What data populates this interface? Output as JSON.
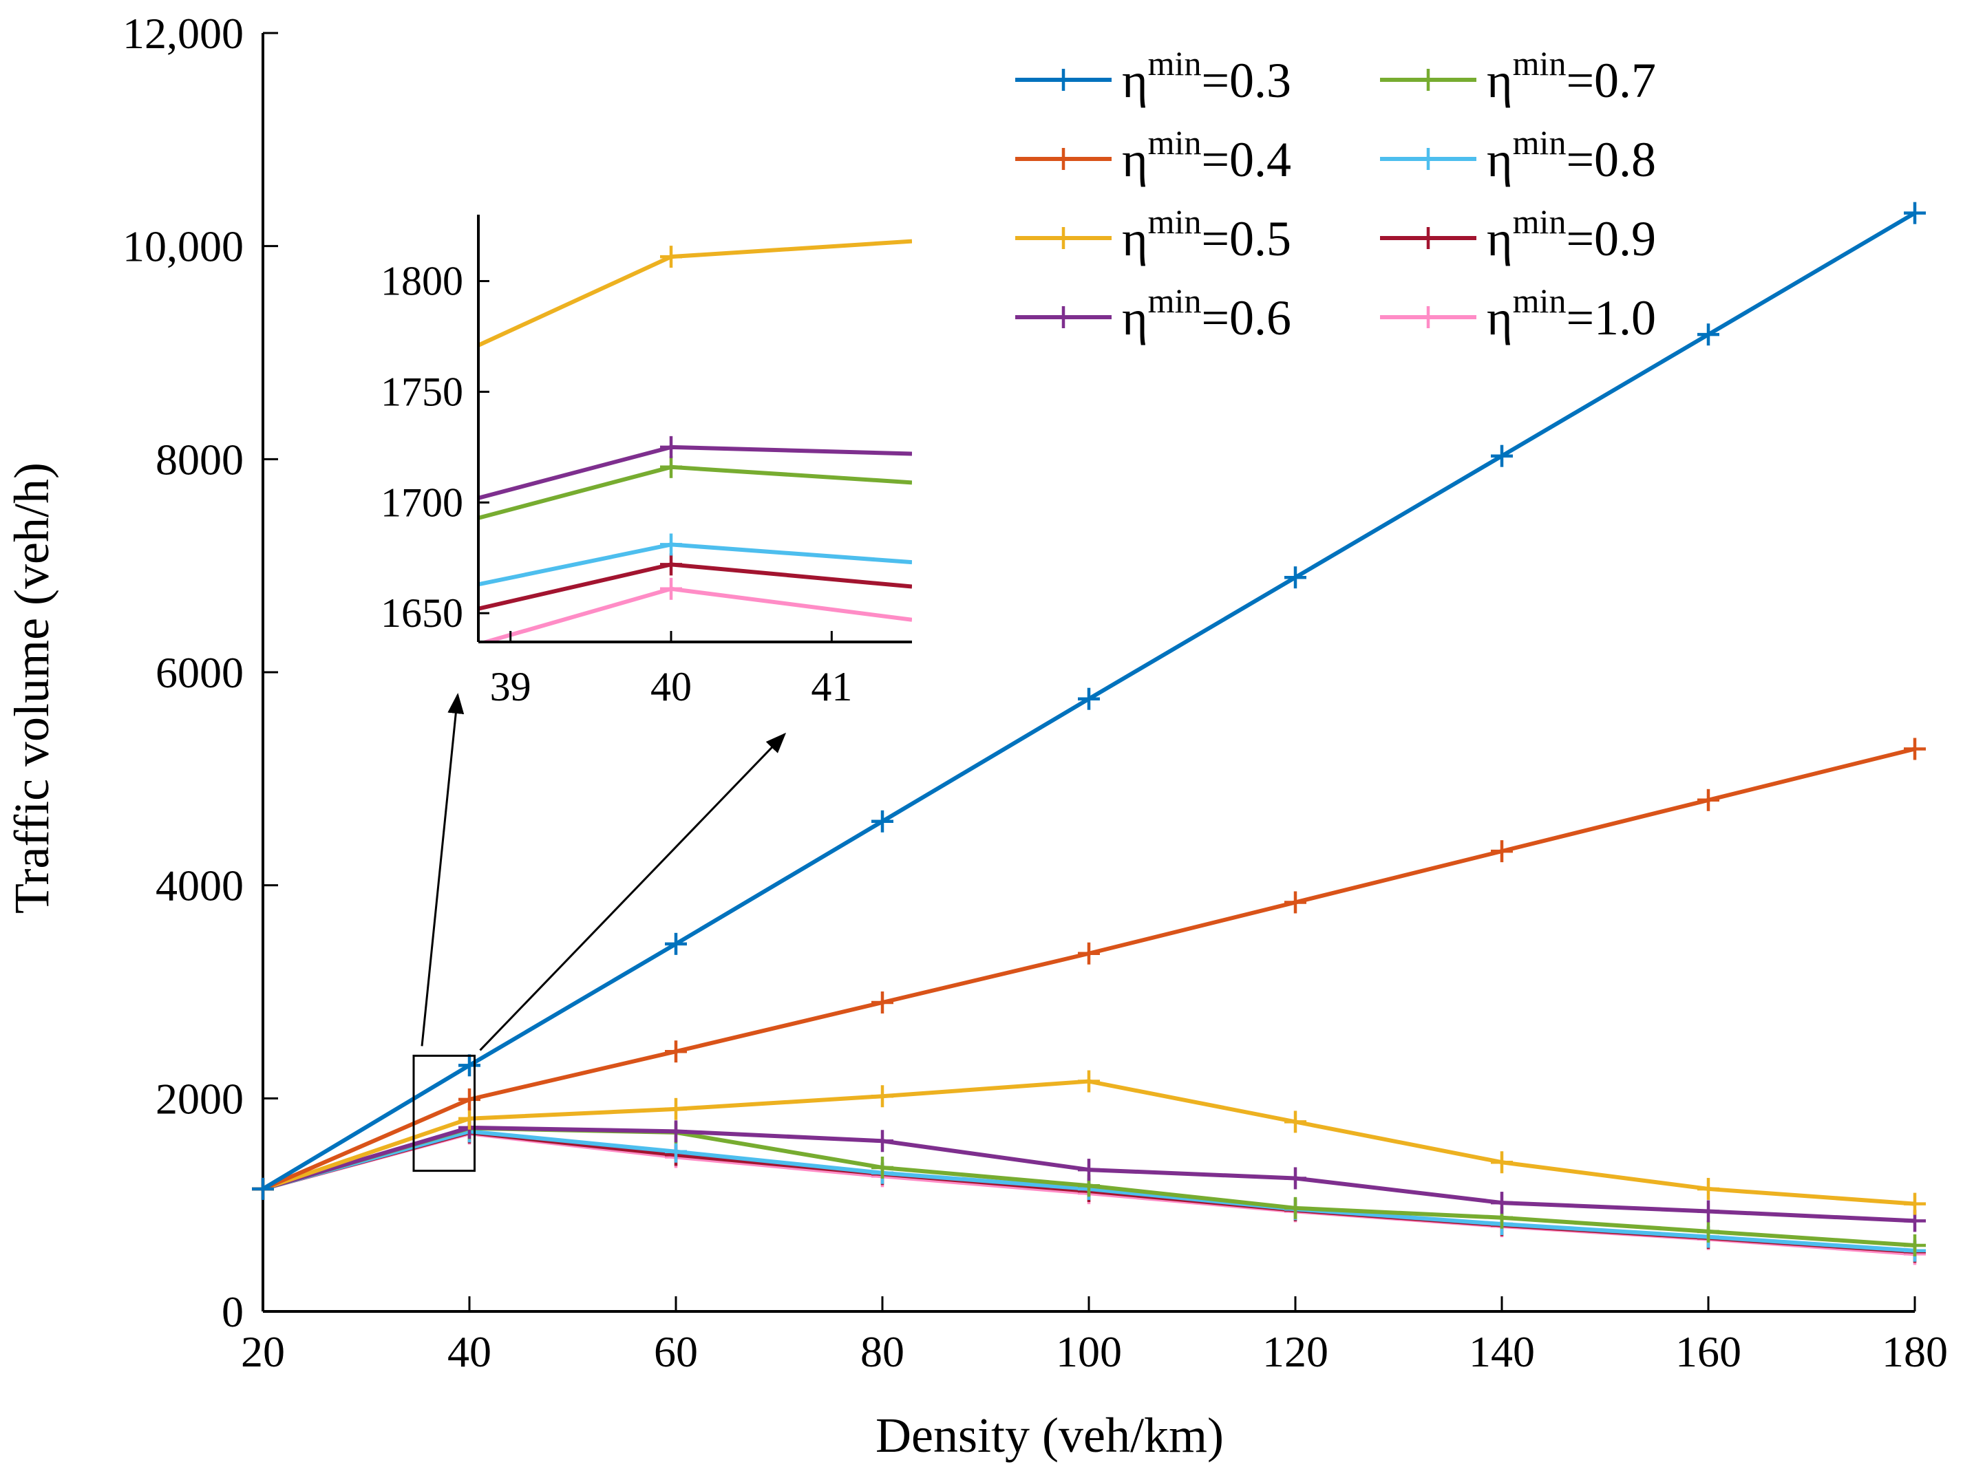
{
  "chart_data": {
    "type": "line",
    "xlabel": "Density (veh/km)",
    "ylabel": "Traffic volume (veh/h)",
    "xlim": [
      20,
      180
    ],
    "ylim": [
      0,
      12000
    ],
    "xticks": [
      20,
      40,
      60,
      80,
      100,
      120,
      140,
      160,
      180
    ],
    "xtick_labels": [
      "20",
      "40",
      "60",
      "80",
      "100",
      "120",
      "140",
      "160",
      "180"
    ],
    "yticks": [
      0,
      2000,
      4000,
      6000,
      8000,
      10000,
      12000
    ],
    "ytick_labels": [
      "0",
      "2000",
      "4000",
      "6000",
      "8000",
      "10,000",
      "12,000"
    ],
    "x": [
      20,
      40,
      60,
      80,
      100,
      120,
      140,
      160,
      180
    ],
    "legend_symbol": "η",
    "legend_superscript": "min",
    "legend_placement": "top-right, two columns",
    "series": [
      {
        "name": "η^min=0.3",
        "legend_value": "=0.3",
        "color": "#0072BD",
        "values": [
          1150,
          2310,
          3450,
          4600,
          5750,
          6890,
          8030,
          9170,
          10310
        ]
      },
      {
        "name": "η^min=0.4",
        "legend_value": "=0.4",
        "color": "#D95319",
        "values": [
          1150,
          1990,
          2440,
          2900,
          3360,
          3840,
          4320,
          4800,
          5280
        ]
      },
      {
        "name": "η^min=0.5",
        "legend_value": "=0.5",
        "color": "#EDB120",
        "values": [
          1150,
          1810,
          1900,
          2020,
          2160,
          1780,
          1400,
          1150,
          1010
        ]
      },
      {
        "name": "η^min=0.6",
        "legend_value": "=0.6",
        "color": "#7E2F8E",
        "values": [
          1150,
          1725,
          1690,
          1600,
          1330,
          1250,
          1020,
          940,
          850
        ]
      },
      {
        "name": "η^min=0.7",
        "legend_value": "=0.7",
        "color": "#77AC30",
        "values": [
          1150,
          1720,
          1680,
          1350,
          1180,
          970,
          880,
          750,
          620
        ]
      },
      {
        "name": "η^min=0.8",
        "legend_value": "=0.8",
        "color": "#4DBEEE",
        "values": [
          1150,
          1690,
          1500,
          1300,
          1150,
          960,
          820,
          700,
          570
        ]
      },
      {
        "name": "η^min=0.9",
        "legend_value": "=0.9",
        "color": "#A2142F",
        "values": [
          1150,
          1680,
          1470,
          1290,
          1130,
          950,
          810,
          690,
          560
        ]
      },
      {
        "name": "η^min=1.0",
        "legend_value": "=1.0",
        "color": "#FF8CC6",
        "values": [
          1150,
          1670,
          1450,
          1270,
          1110,
          940,
          800,
          680,
          540
        ]
      }
    ],
    "inset": {
      "description": "zoom around density 40",
      "xlim": [
        38.8,
        41.5
      ],
      "ylim": [
        1637,
        1830
      ],
      "xticks": [
        39,
        40,
        41
      ],
      "xtick_labels": [
        "39",
        "40",
        "41"
      ],
      "yticks": [
        1650,
        1700,
        1750,
        1800
      ],
      "ytick_labels": [
        "1650",
        "1700",
        "1750",
        "1800"
      ],
      "series_points": [
        {
          "series": "η^min=0.5",
          "x": [
            38.8,
            40,
            41.5
          ],
          "y": [
            1771,
            1811,
            1818
          ]
        },
        {
          "series": "η^min=0.6",
          "x": [
            38.8,
            40,
            41.5
          ],
          "y": [
            1702,
            1725,
            1722
          ]
        },
        {
          "series": "η^min=0.7",
          "x": [
            38.8,
            40,
            41.5
          ],
          "y": [
            1693,
            1716,
            1709
          ]
        },
        {
          "series": "η^min=0.8",
          "x": [
            38.8,
            40,
            41.5
          ],
          "y": [
            1663,
            1681,
            1673
          ]
        },
        {
          "series": "η^min=0.9",
          "x": [
            38.8,
            40,
            41.5
          ],
          "y": [
            1652,
            1672,
            1662
          ]
        },
        {
          "series": "η^min=1.0",
          "x": [
            38.8,
            40,
            41.5
          ],
          "y": [
            1636,
            1661,
            1647
          ]
        }
      ]
    }
  }
}
